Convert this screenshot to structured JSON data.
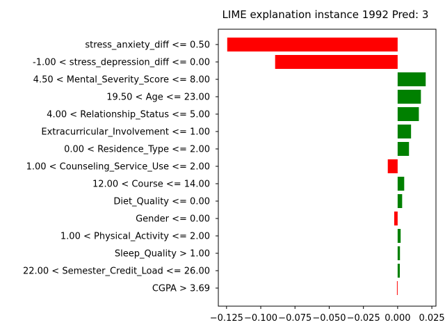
{
  "chart_data": {
    "type": "bar",
    "orientation": "horizontal",
    "title": "LIME explanation instance 1992 Pred: 3",
    "xlabel": "",
    "ylabel": "",
    "xlim": [
      -0.131,
      0.028
    ],
    "xticks": [
      -0.125,
      -0.1,
      -0.075,
      -0.05,
      -0.025,
      0.0,
      0.025
    ],
    "xtick_labels": [
      "−0.125",
      "−0.100",
      "−0.075",
      "−0.050",
      "−0.025",
      "0.000",
      "0.025"
    ],
    "grid": false,
    "colors": {
      "positive": "#008000",
      "negative": "#ff0000"
    },
    "categories": [
      "stress_anxiety_diff <= 0.50",
      "-1.00 < stress_depression_diff <= 0.00",
      "4.50 < Mental_Severity_Score <= 8.00",
      "19.50 < Age <= 23.00",
      "4.00 < Relationship_Status <= 5.00",
      "Extracurricular_Involvement <= 1.00",
      "0.00 < Residence_Type <= 2.00",
      "1.00 < Counseling_Service_Use <= 2.00",
      "12.00 < Course <= 14.00",
      "Diet_Quality <= 0.00",
      "Gender <= 0.00",
      "1.00 < Physical_Activity <= 2.00",
      "Sleep_Quality > 1.00",
      "22.00 < Semester_Credit_Load <= 26.00",
      "CGPA > 3.69"
    ],
    "values": [
      -0.1245,
      -0.0895,
      0.0205,
      0.017,
      0.0155,
      0.0098,
      0.0083,
      -0.0072,
      0.0048,
      0.0033,
      -0.0025,
      0.0022,
      0.0017,
      0.0016,
      -0.0005
    ]
  }
}
